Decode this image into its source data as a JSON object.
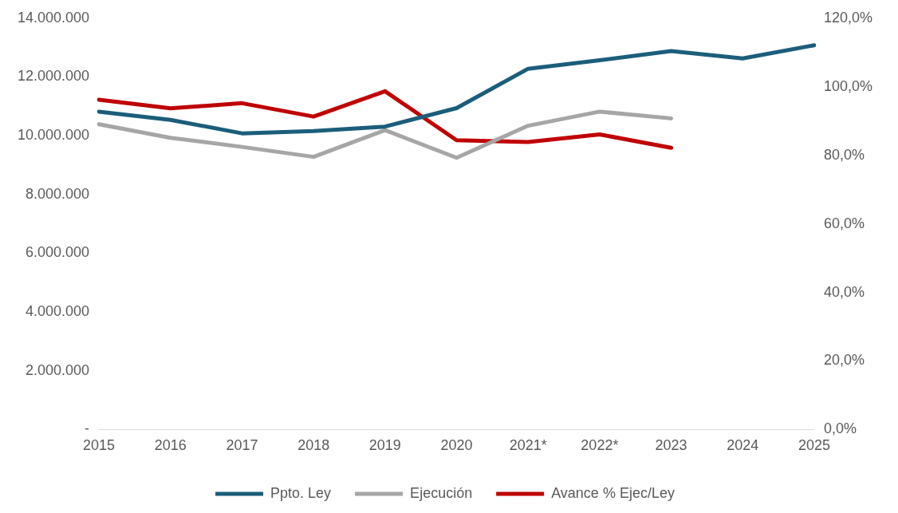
{
  "chart_data": {
    "type": "line",
    "categories": [
      "2015",
      "2016",
      "2017",
      "2018",
      "2019",
      "2020",
      "2021*",
      "2022*",
      "2023",
      "2024",
      "2025"
    ],
    "series": [
      {
        "name": "Ppto. Ley",
        "color": "#1b5e7b",
        "values": [
          10820000,
          10540000,
          10080000,
          10160000,
          10310000,
          10940000,
          12280000,
          12570000,
          12880000,
          12630000,
          13080000
        ]
      },
      {
        "name": "Ejecución",
        "color": "#a6a6a6",
        "values": [
          10390000,
          9930000,
          9620000,
          9280000,
          10190000,
          9250000,
          10340000,
          10820000,
          10590000,
          null,
          null
        ]
      },
      {
        "name": "Avance % Ejec/Ley",
        "color": "#c00000",
        "axis": "y2",
        "values": [
          96.2,
          93.7,
          95.2,
          91.3,
          98.7,
          84.4,
          83.9,
          86.1,
          82.2,
          null,
          null
        ]
      }
    ],
    "ylim": [
      0,
      14000000
    ],
    "yticks": [
      {
        "value": 0,
        "label": "-"
      },
      {
        "value": 2000000,
        "label": "2.000.000"
      },
      {
        "value": 4000000,
        "label": "4.000.000"
      },
      {
        "value": 6000000,
        "label": "6.000.000"
      },
      {
        "value": 8000000,
        "label": "8.000.000"
      },
      {
        "value": 10000000,
        "label": "10.000.000"
      },
      {
        "value": 12000000,
        "label": "12.000.000"
      },
      {
        "value": 14000000,
        "label": "14.000.000"
      }
    ],
    "y2lim": [
      0,
      120
    ],
    "y2ticks": [
      {
        "value": 0,
        "label": "0,0%"
      },
      {
        "value": 20,
        "label": "20,0%"
      },
      {
        "value": 40,
        "label": "40,0%"
      },
      {
        "value": 60,
        "label": "60,0%"
      },
      {
        "value": 80,
        "label": "80,0%"
      },
      {
        "value": 100,
        "label": "100,0%"
      },
      {
        "value": 120,
        "label": "120,0%"
      }
    ],
    "grid": false,
    "legend": "bottom",
    "marker": "none",
    "line_style": "solid"
  }
}
